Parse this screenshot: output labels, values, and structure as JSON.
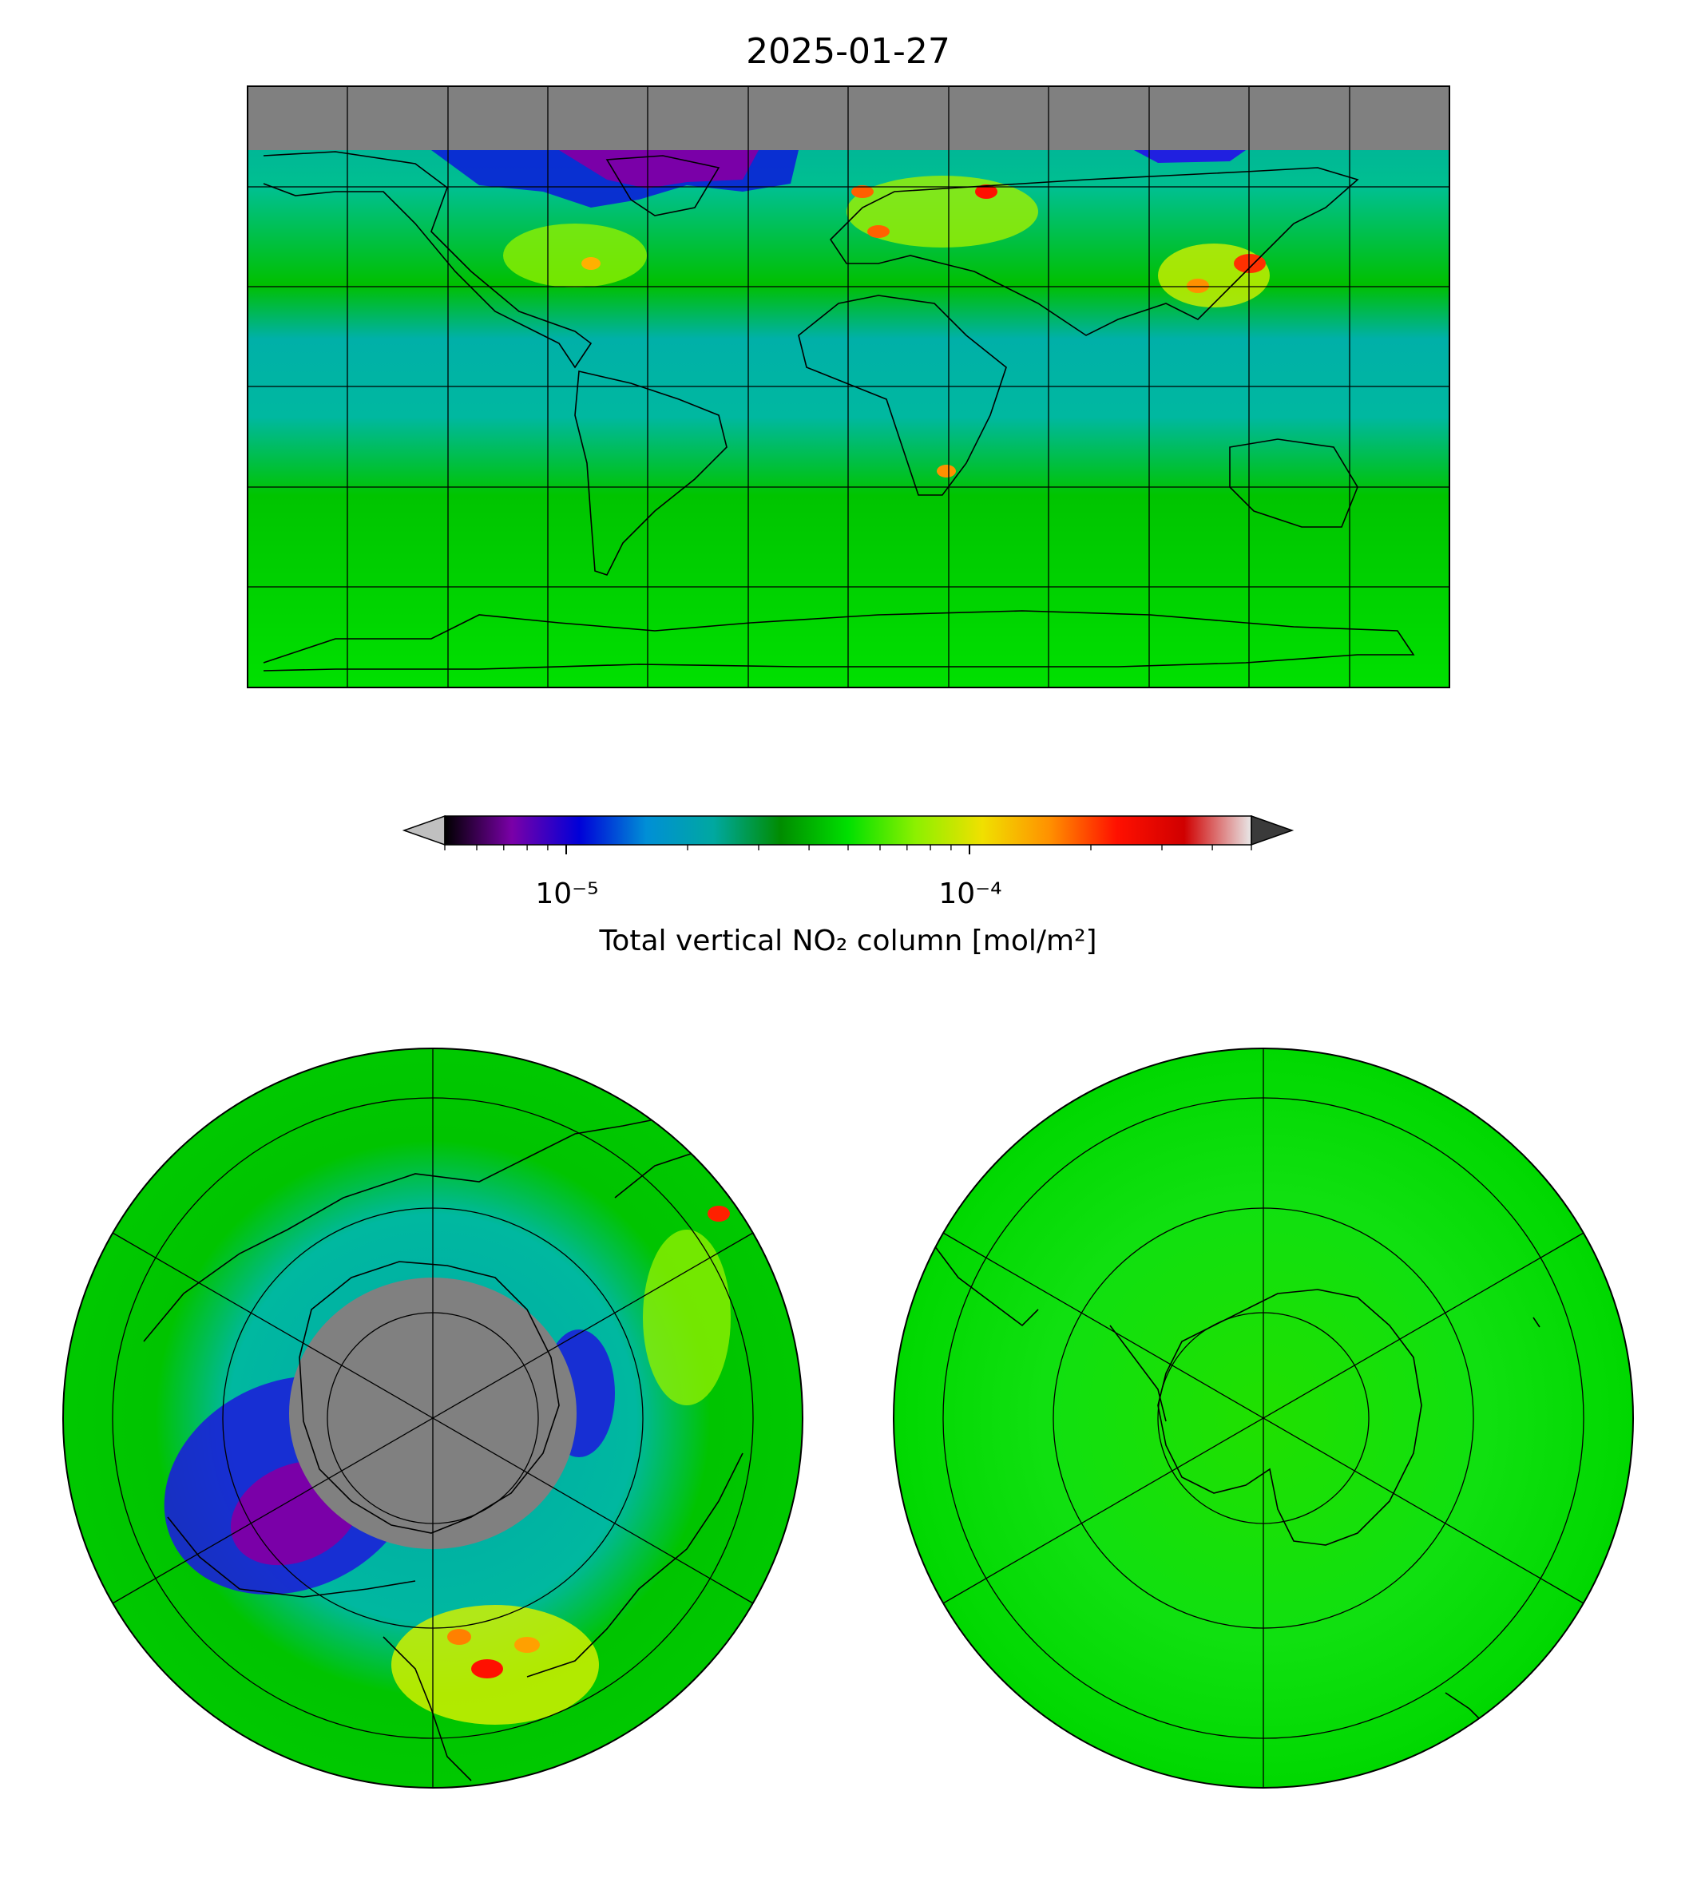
{
  "figure": {
    "title": "2025-01-27"
  },
  "colorbar": {
    "label": "Total vertical NO₂ column [mol/m²]",
    "tick_labels": [
      "10⁻⁵",
      "10⁻⁴"
    ],
    "scale": "log",
    "range": [
      5e-06,
      0.0005
    ],
    "extend": "both",
    "under_color": "#c0c0c0",
    "over_color": "#3a3a3a",
    "colormap_stops": [
      "#000000",
      "#7a00a8",
      "#0000d8",
      "#008fd6",
      "#00a8a0",
      "#008c00",
      "#00e000",
      "#8cf000",
      "#f0e000",
      "#ff9000",
      "#ff1000",
      "#d00000",
      "#e8e8e8"
    ]
  },
  "maps": {
    "global": {
      "name": "global-map",
      "projection": "plate-carree",
      "missing_data_color": "#808080",
      "background_color": "#00cc00"
    },
    "north_polar": {
      "name": "north-polar-map",
      "projection": "north-polar-stereographic",
      "missing_data_color": "#808080"
    },
    "south_polar": {
      "name": "south-polar-map",
      "projection": "south-polar-stereographic"
    }
  },
  "colors": {
    "land_line": "#000000",
    "field_green": "#00d000",
    "teal": "#00a8a0",
    "blue": "#1a10d8",
    "purple": "#7a00a8",
    "yellow": "#f0e000",
    "red": "#e00000"
  }
}
